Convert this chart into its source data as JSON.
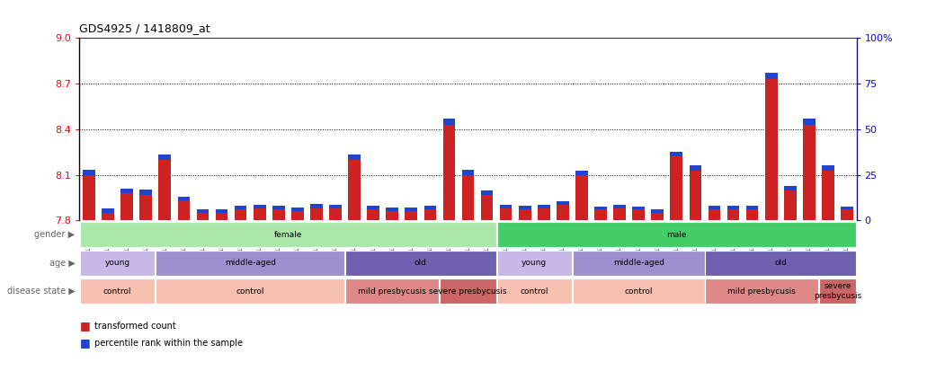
{
  "title": "GDS4925 / 1418809_at",
  "samples": [
    "GSM1201565",
    "GSM1201566",
    "GSM1201567",
    "GSM1201572",
    "GSM1201574",
    "GSM1201575",
    "GSM1201576",
    "GSM1201577",
    "GSM1201582",
    "GSM1201583",
    "GSM1201584",
    "GSM1201585",
    "GSM1201586",
    "GSM1201587",
    "GSM1201591",
    "GSM1201592",
    "GSM1201594",
    "GSM1201595",
    "GSM1201600",
    "GSM1201601",
    "GSM1201603",
    "GSM1201605",
    "GSM1201568",
    "GSM1201569",
    "GSM1201570",
    "GSM1201571",
    "GSM1201573",
    "GSM1201578",
    "GSM1201579",
    "GSM1201580",
    "GSM1201581",
    "GSM1201588",
    "GSM1201589",
    "GSM1201590",
    "GSM1201593",
    "GSM1201596",
    "GSM1201597",
    "GSM1201598",
    "GSM1201599",
    "GSM1201602",
    "GSM1201604"
  ],
  "red_values": [
    8.1,
    7.85,
    7.98,
    7.97,
    8.2,
    7.93,
    7.85,
    7.85,
    7.87,
    7.88,
    7.87,
    7.86,
    7.88,
    7.88,
    8.2,
    7.87,
    7.86,
    7.86,
    7.87,
    8.43,
    8.1,
    7.97,
    7.88,
    7.87,
    7.88,
    7.9,
    8.1,
    7.87,
    7.88,
    7.87,
    7.85,
    8.22,
    8.13,
    7.87,
    7.87,
    7.87,
    8.73,
    8.0,
    8.43,
    8.13,
    7.87
  ],
  "blue_heights": [
    0.035,
    0.03,
    0.028,
    0.03,
    0.032,
    0.025,
    0.025,
    0.025,
    0.025,
    0.025,
    0.025,
    0.025,
    0.028,
    0.025,
    0.032,
    0.025,
    0.022,
    0.022,
    0.028,
    0.038,
    0.032,
    0.025,
    0.025,
    0.025,
    0.025,
    0.025,
    0.028,
    0.022,
    0.025,
    0.022,
    0.022,
    0.032,
    0.03,
    0.025,
    0.025,
    0.025,
    0.042,
    0.028,
    0.038,
    0.03,
    0.022
  ],
  "ymin": 7.8,
  "ymax": 9.0,
  "yticks_left": [
    7.8,
    8.1,
    8.4,
    8.7,
    9.0
  ],
  "yticks_right_vals": [
    0,
    25,
    50,
    75,
    100
  ],
  "yticks_right_labels": [
    "0",
    "25",
    "50",
    "75",
    "100%"
  ],
  "gender_groups": [
    {
      "label": "female",
      "start": 0,
      "end": 22,
      "color": "#aae8aa"
    },
    {
      "label": "male",
      "start": 22,
      "end": 41,
      "color": "#44cc66"
    }
  ],
  "age_groups": [
    {
      "label": "young",
      "start": 0,
      "end": 4,
      "color": "#c8b8e8"
    },
    {
      "label": "middle-aged",
      "start": 4,
      "end": 14,
      "color": "#9f8fcf"
    },
    {
      "label": "old",
      "start": 14,
      "end": 22,
      "color": "#7060b0"
    },
    {
      "label": "young",
      "start": 22,
      "end": 26,
      "color": "#c8b8e8"
    },
    {
      "label": "middle-aged",
      "start": 26,
      "end": 33,
      "color": "#9f8fcf"
    },
    {
      "label": "old",
      "start": 33,
      "end": 41,
      "color": "#7060b0"
    }
  ],
  "disease_groups": [
    {
      "label": "control",
      "start": 0,
      "end": 4,
      "color": "#f5c0b0"
    },
    {
      "label": "control",
      "start": 4,
      "end": 14,
      "color": "#f5c0b0"
    },
    {
      "label": "mild presbycusis",
      "start": 14,
      "end": 19,
      "color": "#e08888"
    },
    {
      "label": "severe presbycusis",
      "start": 19,
      "end": 22,
      "color": "#cc6666"
    },
    {
      "label": "control",
      "start": 22,
      "end": 26,
      "color": "#f5c0b0"
    },
    {
      "label": "control",
      "start": 26,
      "end": 33,
      "color": "#f5c0b0"
    },
    {
      "label": "mild presbycusis",
      "start": 33,
      "end": 39,
      "color": "#e08888"
    },
    {
      "label": "severe\npresbycusis",
      "start": 39,
      "end": 41,
      "color": "#cc6666"
    }
  ],
  "bar_color_red": "#cc2222",
  "bar_color_blue": "#2244cc",
  "bg_color": "#ffffff"
}
